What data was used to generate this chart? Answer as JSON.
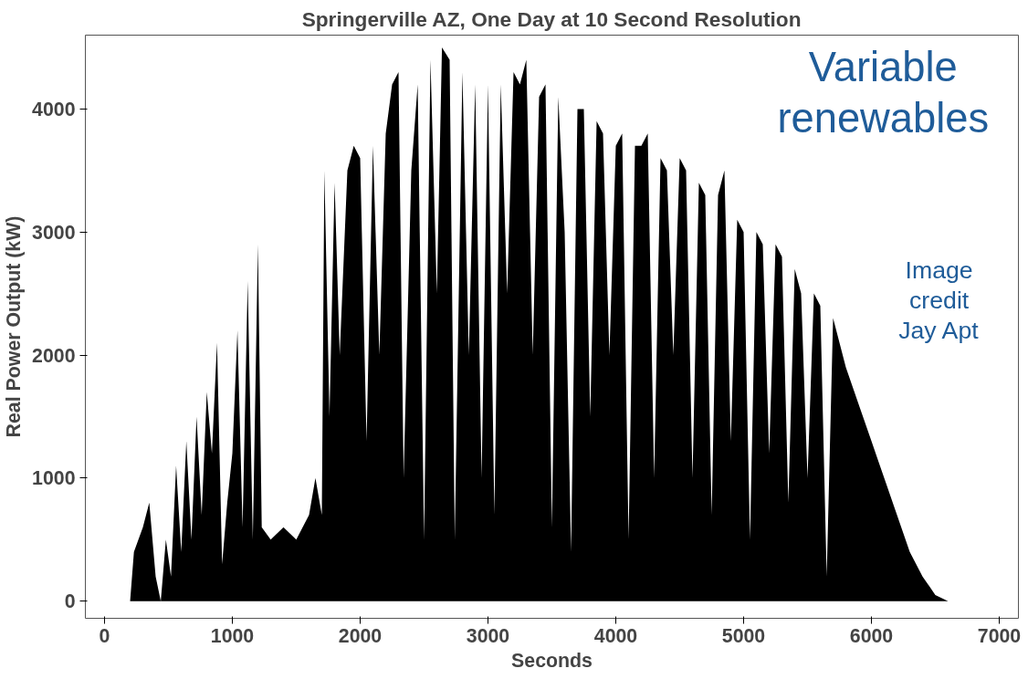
{
  "chart_data": {
    "type": "area",
    "title": "Springerville AZ, One Day at 10 Second Resolution",
    "xlabel": "Seconds",
    "ylabel": "Real Power Output (kW)",
    "xlim": [
      -150,
      7150
    ],
    "ylim": [
      -140,
      4600
    ],
    "xticks": [
      0,
      1000,
      2000,
      3000,
      4000,
      5000,
      6000,
      7000
    ],
    "yticks": [
      0,
      1000,
      2000,
      3000,
      4000
    ],
    "grid": false,
    "x": [
      0,
      200,
      230,
      300,
      350,
      400,
      440,
      480,
      520,
      560,
      600,
      640,
      680,
      720,
      760,
      800,
      840,
      880,
      920,
      960,
      1000,
      1040,
      1080,
      1120,
      1160,
      1200,
      1230,
      1300,
      1400,
      1500,
      1600,
      1650,
      1700,
      1720,
      1760,
      1800,
      1840,
      1900,
      1950,
      2000,
      2050,
      2100,
      2150,
      2200,
      2250,
      2300,
      2340,
      2400,
      2450,
      2500,
      2550,
      2600,
      2640,
      2700,
      2740,
      2800,
      2850,
      2900,
      2950,
      3000,
      3050,
      3100,
      3150,
      3200,
      3250,
      3300,
      3350,
      3400,
      3450,
      3500,
      3550,
      3600,
      3650,
      3700,
      3750,
      3800,
      3850,
      3900,
      3950,
      4000,
      4050,
      4100,
      4150,
      4200,
      4250,
      4300,
      4350,
      4400,
      4450,
      4500,
      4550,
      4600,
      4650,
      4700,
      4750,
      4800,
      4850,
      4900,
      4950,
      5000,
      5050,
      5100,
      5150,
      5200,
      5250,
      5300,
      5350,
      5400,
      5450,
      5500,
      5550,
      5600,
      5650,
      5700,
      5800,
      5900,
      6000,
      6100,
      6200,
      6300,
      6400,
      6500,
      6600,
      6800
    ],
    "series": [
      {
        "color": "#000000",
        "values": [
          0,
          0,
          400,
          600,
          800,
          200,
          0,
          500,
          200,
          1100,
          400,
          1300,
          500,
          1500,
          700,
          1700,
          1200,
          2100,
          300,
          800,
          1200,
          2200,
          600,
          2600,
          500,
          2900,
          600,
          500,
          600,
          500,
          700,
          1000,
          700,
          3500,
          1500,
          3400,
          2000,
          3500,
          3700,
          3600,
          1300,
          3700,
          2000,
          3800,
          4200,
          4300,
          1000,
          3500,
          4200,
          500,
          4400,
          2500,
          4500,
          4400,
          500,
          4300,
          2000,
          4200,
          1000,
          4200,
          700,
          4200,
          2500,
          4300,
          4200,
          4400,
          2000,
          4100,
          4200,
          600,
          4100,
          3000,
          400,
          4000,
          4000,
          1500,
          3900,
          3800,
          2000,
          3700,
          3800,
          500,
          3700,
          3700,
          3800,
          1000,
          3600,
          3500,
          2000,
          3600,
          3500,
          1000,
          3400,
          3300,
          700,
          3300,
          3500,
          1300,
          3100,
          3000,
          500,
          3000,
          2900,
          1200,
          2900,
          2800,
          800,
          2700,
          2500,
          1000,
          2500,
          2400,
          200,
          2300,
          1900,
          1600,
          1300,
          1000,
          700,
          400,
          200,
          50,
          0,
          0
        ]
      }
    ],
    "annotations": [
      "Variable\nrenewables",
      "Image\ncredit\nJay Apt"
    ]
  }
}
